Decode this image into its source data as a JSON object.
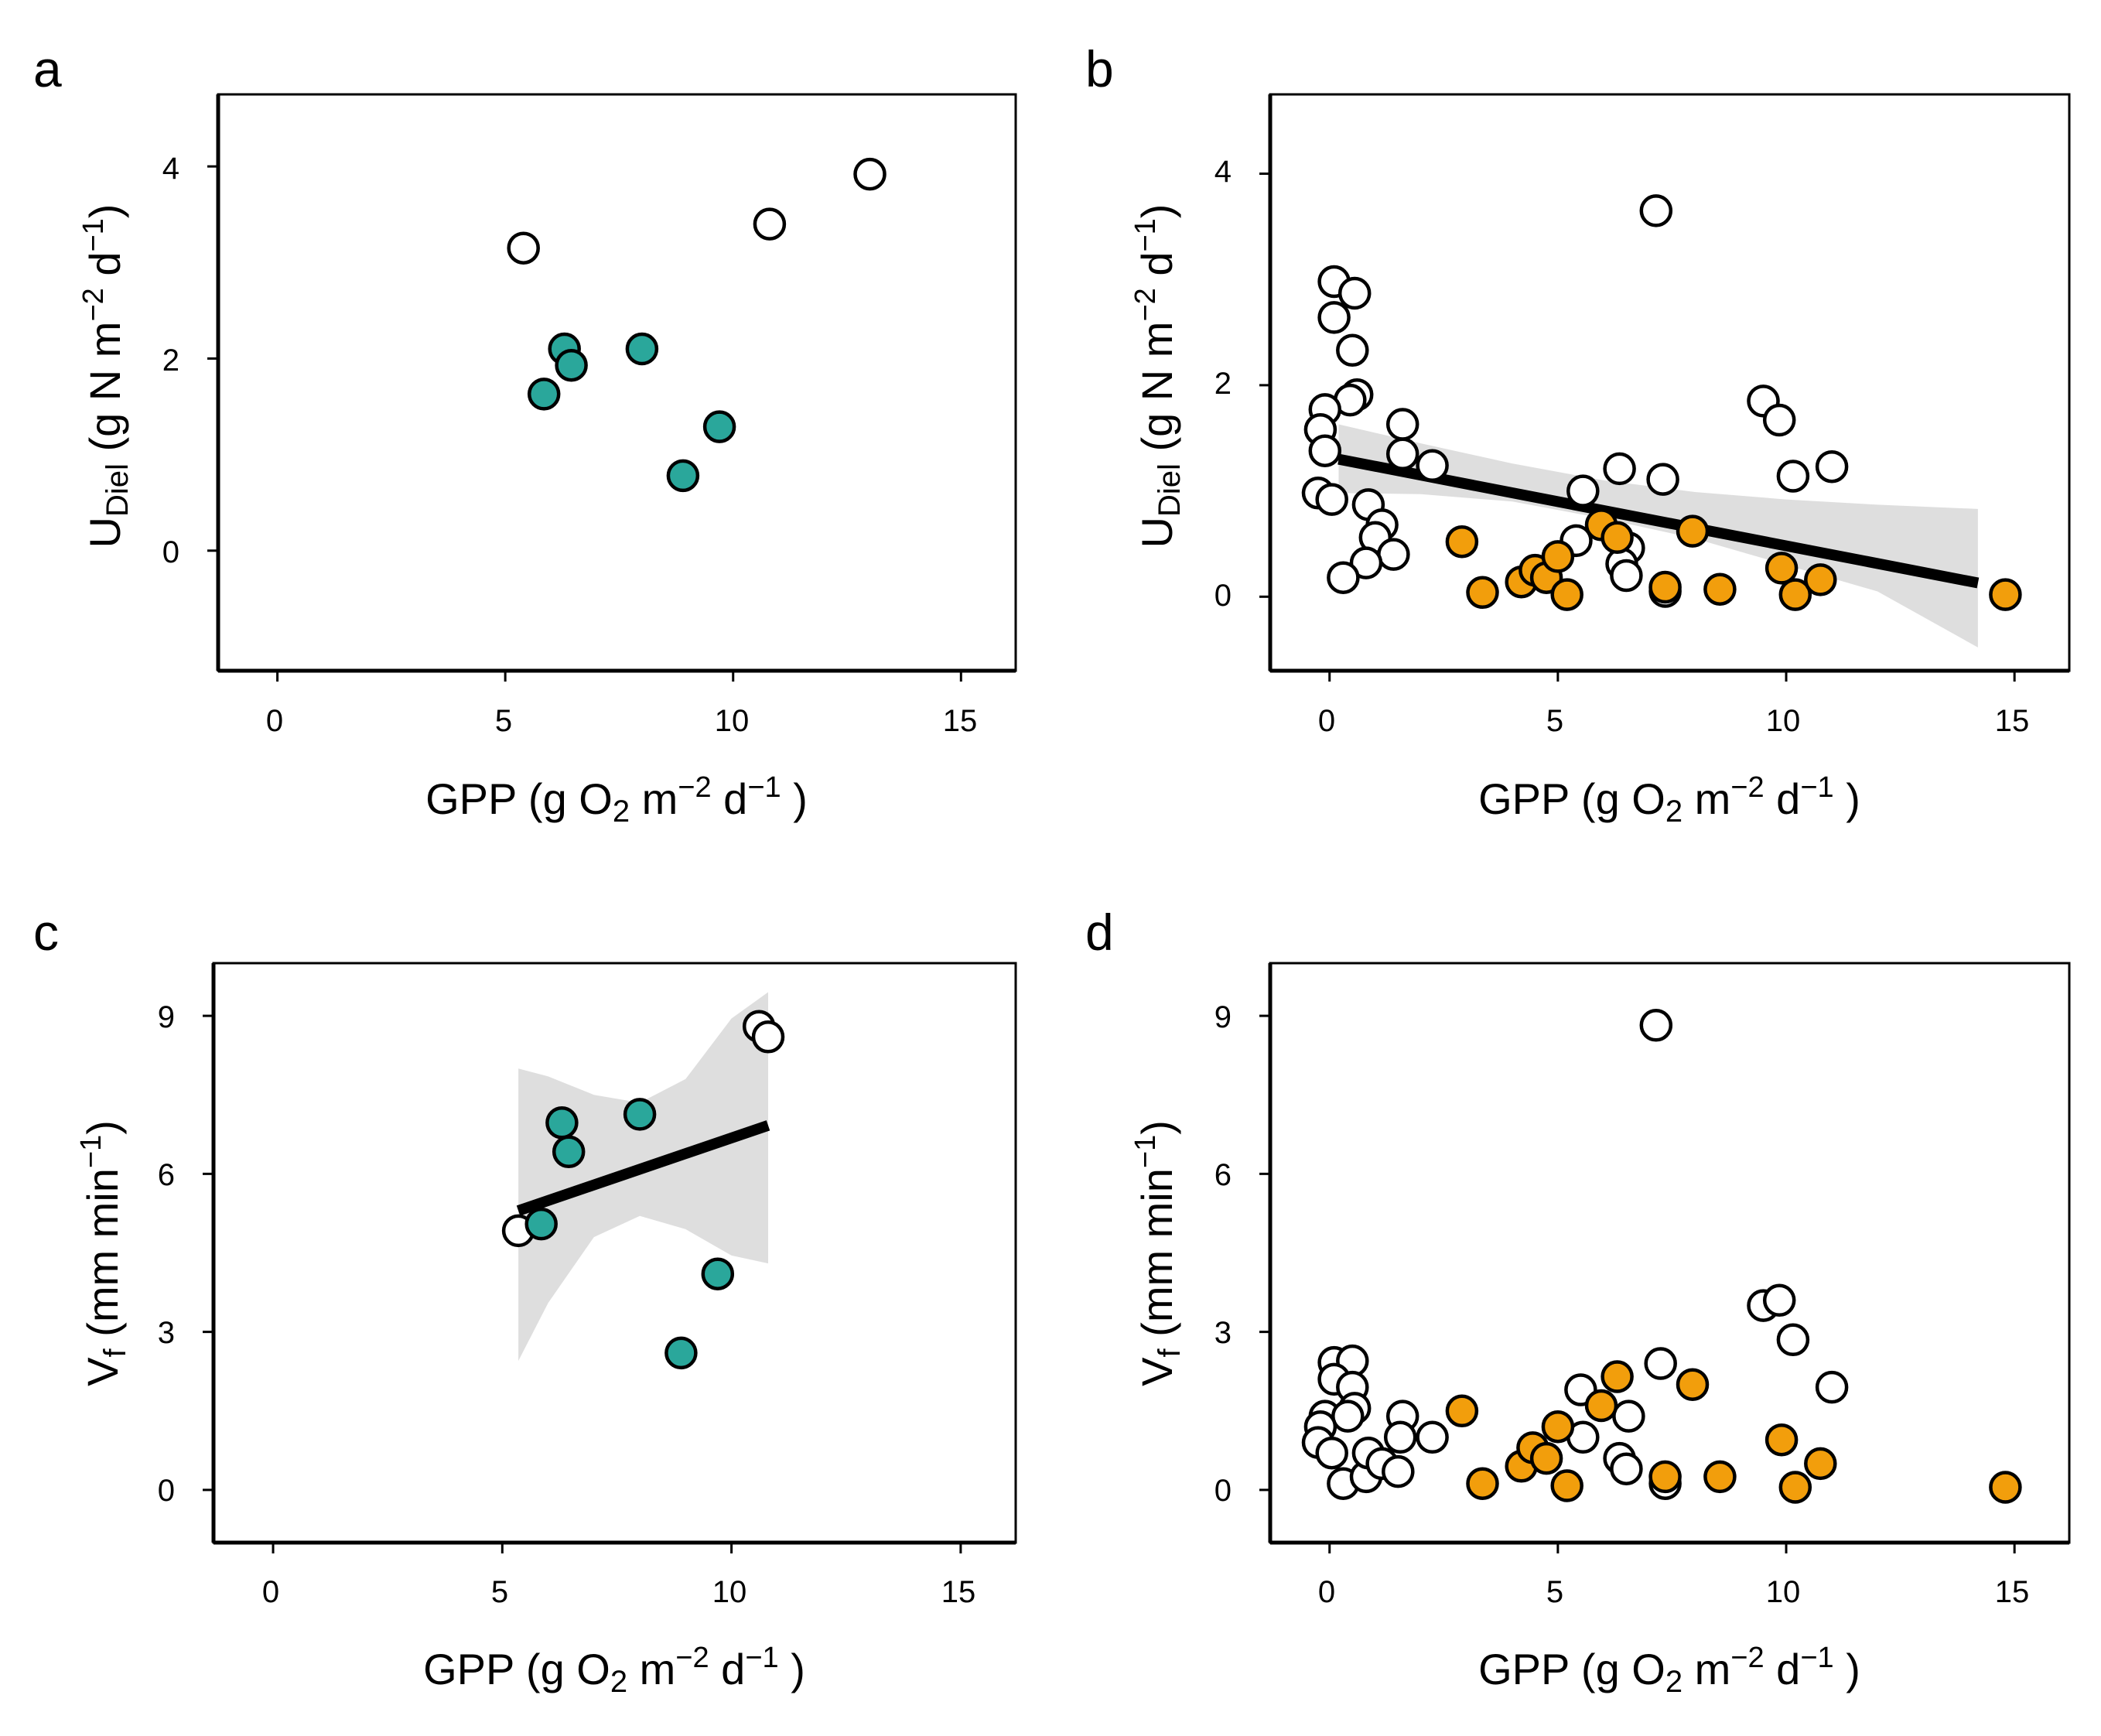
{
  "colors": {
    "teal": "#2aa79b",
    "orange": "#f29e0c",
    "white": "#ffffff",
    "band": "#dcdcdc"
  },
  "chart_data": [
    {
      "id": "a",
      "type": "scatter",
      "panel_label": "a",
      "xlabel": "GPP (g O2 m-2 d-1 )",
      "ylabel": "UDiel (g N m-2 d-1)",
      "xlim": [
        -1.3,
        16.2
      ],
      "ylim": [
        -1.25,
        4.75
      ],
      "xticks": [
        0,
        5,
        10,
        15
      ],
      "yticks": [
        0,
        2,
        4
      ],
      "series": [
        {
          "color": "white",
          "points": [
            [
              5.4,
              3.15
            ],
            [
              10.8,
              3.4
            ],
            [
              13.0,
              3.92
            ]
          ]
        },
        {
          "color": "teal",
          "points": [
            [
              6.3,
              2.1
            ],
            [
              6.45,
              1.93
            ],
            [
              5.85,
              1.63
            ],
            [
              8.0,
              2.1
            ],
            [
              9.7,
              1.29
            ],
            [
              8.9,
              0.78
            ]
          ]
        }
      ]
    },
    {
      "id": "b",
      "type": "scatter",
      "panel_label": "b",
      "xlabel": "GPP (g O2 m-2 d-1 )",
      "ylabel": "UDiel (g N m-2 d-1)",
      "xlim": [
        -1.3,
        16.2
      ],
      "ylim": [
        -0.7,
        4.75
      ],
      "xticks": [
        0,
        5,
        10,
        15
      ],
      "yticks": [
        0,
        2,
        4
      ],
      "series": [
        {
          "color": "white",
          "points": [
            [
              0.1,
              2.98
            ],
            [
              0.55,
              2.87
            ],
            [
              0.1,
              2.64
            ],
            [
              0.5,
              2.33
            ],
            [
              0.6,
              1.91
            ],
            [
              0.45,
              1.86
            ],
            [
              -0.1,
              1.77
            ],
            [
              -0.2,
              1.58
            ],
            [
              -0.1,
              1.38
            ],
            [
              -0.25,
              0.98
            ],
            [
              0.05,
              0.92
            ],
            [
              0.85,
              0.87
            ],
            [
              1.15,
              0.68
            ],
            [
              1.0,
              0.56
            ],
            [
              1.4,
              0.4
            ],
            [
              0.8,
              0.32
            ],
            [
              0.3,
              0.18
            ],
            [
              1.6,
              1.63
            ],
            [
              1.6,
              1.35
            ],
            [
              2.25,
              1.24
            ],
            [
              7.15,
              3.65
            ],
            [
              9.5,
              1.85
            ],
            [
              9.85,
              1.67
            ],
            [
              6.35,
              1.21
            ],
            [
              5.55,
              1.0
            ],
            [
              7.3,
              1.11
            ],
            [
              10.15,
              1.14
            ],
            [
              11.0,
              1.23
            ],
            [
              5.4,
              0.53
            ],
            [
              6.55,
              0.46
            ],
            [
              6.4,
              0.31
            ],
            [
              6.5,
              0.2
            ],
            [
              7.35,
              0.05
            ]
          ]
        },
        {
          "color": "orange",
          "points": [
            [
              2.9,
              0.52
            ],
            [
              3.35,
              0.04
            ],
            [
              4.2,
              0.14
            ],
            [
              4.5,
              0.25
            ],
            [
              4.75,
              0.18
            ],
            [
              5.0,
              0.38
            ],
            [
              5.2,
              0.02
            ],
            [
              5.95,
              0.68
            ],
            [
              6.3,
              0.56
            ],
            [
              7.35,
              0.09
            ],
            [
              7.95,
              0.62
            ],
            [
              8.55,
              0.07
            ],
            [
              9.9,
              0.27
            ],
            [
              10.2,
              0.02
            ],
            [
              10.75,
              0.16
            ],
            [
              14.8,
              0.02
            ]
          ]
        }
      ],
      "fit": {
        "x": [
          0.2,
          14.2
        ],
        "y": [
          1.3,
          0.13
        ]
      },
      "ci": {
        "x": [
          0.2,
          2.0,
          4.0,
          6.0,
          8.0,
          10.0,
          12.0,
          14.2
        ],
        "upper": [
          1.63,
          1.45,
          1.26,
          1.1,
          0.99,
          0.92,
          0.87,
          0.83
        ],
        "lower": [
          0.98,
          0.97,
          0.9,
          0.74,
          0.55,
          0.3,
          0.05,
          -0.48
        ]
      }
    },
    {
      "id": "c",
      "type": "scatter",
      "panel_label": "c",
      "xlabel": "GPP (g O2 m-2 d-1 )",
      "ylabel": "Vf (mm min-1)",
      "xlim": [
        -1.3,
        16.2
      ],
      "ylim": [
        -1.0,
        10.0
      ],
      "xticks": [
        0,
        5,
        10,
        15
      ],
      "yticks": [
        0,
        3,
        6,
        9
      ],
      "series": [
        {
          "color": "white",
          "points": [
            [
              5.35,
              4.92
            ],
            [
              10.6,
              8.8
            ],
            [
              10.8,
              8.6
            ]
          ]
        },
        {
          "color": "teal",
          "points": [
            [
              6.3,
              6.97
            ],
            [
              6.45,
              6.42
            ],
            [
              8.0,
              7.13
            ],
            [
              5.85,
              5.05
            ],
            [
              9.7,
              4.1
            ],
            [
              8.9,
              2.6
            ]
          ]
        }
      ],
      "fit": {
        "x": [
          5.35,
          10.8
        ],
        "y": [
          5.3,
          6.92
        ]
      },
      "ci": {
        "x": [
          5.35,
          6.0,
          7.0,
          8.0,
          9.0,
          10.0,
          10.8
        ],
        "upper": [
          8.0,
          7.85,
          7.5,
          7.35,
          7.8,
          8.95,
          9.45
        ],
        "lower": [
          2.45,
          3.55,
          4.8,
          5.2,
          4.95,
          4.45,
          4.3
        ]
      }
    },
    {
      "id": "d",
      "type": "scatter",
      "panel_label": "d",
      "xlabel": "GPP (g O2 m-2 d-1 )",
      "ylabel": "Vf (mm min-1)",
      "xlim": [
        -1.3,
        16.2
      ],
      "ylim": [
        -1.0,
        10.0
      ],
      "xticks": [
        0,
        5,
        10,
        15
      ],
      "yticks": [
        0,
        3,
        6,
        9
      ],
      "series": [
        {
          "color": "white",
          "points": [
            [
              7.15,
              8.82
            ],
            [
              0.1,
              2.42
            ],
            [
              0.5,
              2.45
            ],
            [
              0.1,
              2.1
            ],
            [
              0.5,
              1.95
            ],
            [
              0.55,
              1.55
            ],
            [
              -0.1,
              1.4
            ],
            [
              0.4,
              1.4
            ],
            [
              -0.2,
              1.2
            ],
            [
              -0.25,
              0.9
            ],
            [
              0.05,
              0.7
            ],
            [
              0.3,
              0.12
            ],
            [
              0.8,
              0.25
            ],
            [
              0.85,
              0.7
            ],
            [
              1.15,
              0.5
            ],
            [
              1.5,
              0.35
            ],
            [
              1.6,
              1.4
            ],
            [
              1.55,
              1.0
            ],
            [
              2.25,
              1.0
            ],
            [
              9.5,
              3.5
            ],
            [
              9.85,
              3.6
            ],
            [
              10.15,
              2.85
            ],
            [
              11.0,
              1.95
            ],
            [
              7.25,
              2.4
            ],
            [
              5.5,
              1.9
            ],
            [
              5.55,
              1.0
            ],
            [
              6.55,
              1.4
            ],
            [
              6.35,
              0.6
            ],
            [
              6.5,
              0.4
            ],
            [
              7.35,
              0.12
            ]
          ]
        },
        {
          "color": "orange",
          "points": [
            [
              2.9,
              1.5
            ],
            [
              3.35,
              0.12
            ],
            [
              4.2,
              0.45
            ],
            [
              4.45,
              0.8
            ],
            [
              4.75,
              0.6
            ],
            [
              5.0,
              1.2
            ],
            [
              5.2,
              0.08
            ],
            [
              5.95,
              1.6
            ],
            [
              6.3,
              2.15
            ],
            [
              7.35,
              0.25
            ],
            [
              7.95,
              2.0
            ],
            [
              8.55,
              0.25
            ],
            [
              9.9,
              0.95
            ],
            [
              10.2,
              0.05
            ],
            [
              10.75,
              0.5
            ],
            [
              14.8,
              0.05
            ]
          ]
        }
      ]
    }
  ],
  "panels": {
    "a": {
      "letter": "a",
      "yticks": [
        "0",
        "2",
        "4"
      ],
      "xticks": [
        "0",
        "5",
        "10",
        "15"
      ],
      "xtitle": {
        "pre": "GPP (g O",
        "sub": "2",
        "mid": " m",
        "sup1": "−2",
        "mid2": " d",
        "sup2": "−1",
        "post": " )"
      },
      "ytitle": {
        "pre": "U",
        "sub": "Diel",
        "mid": " (g N  m",
        "sup1": "−2",
        "mid2": " d",
        "sup2": "−1",
        "post": ")"
      }
    },
    "b": {
      "letter": "b",
      "yticks": [
        "0",
        "2",
        "4"
      ],
      "xticks": [
        "0",
        "5",
        "10",
        "15"
      ],
      "xtitle": {
        "pre": "GPP (g O",
        "sub": "2",
        "mid": " m",
        "sup1": "−2",
        "mid2": " d",
        "sup2": "−1",
        "post": " )"
      },
      "ytitle": {
        "pre": "U",
        "sub": "Diel",
        "mid": " (g N  m",
        "sup1": "−2",
        "mid2": " d",
        "sup2": "−1",
        "post": ")"
      }
    },
    "c": {
      "letter": "c",
      "yticks": [
        "0",
        "3",
        "6",
        "9"
      ],
      "xticks": [
        "0",
        "5",
        "10",
        "15"
      ],
      "xtitle": {
        "pre": "GPP (g O",
        "sub": "2",
        "mid": " m",
        "sup1": "−2",
        "mid2": " d",
        "sup2": "−1",
        "post": " )"
      },
      "ytitle": {
        "pre": "V",
        "sub": "f",
        "mid": " (mm  min",
        "sup1": "−1",
        "post": ")"
      }
    },
    "d": {
      "letter": "d",
      "yticks": [
        "0",
        "3",
        "6",
        "9"
      ],
      "xticks": [
        "0",
        "5",
        "10",
        "15"
      ],
      "xtitle": {
        "pre": "GPP (g  O",
        "sub": "2",
        "mid": " m",
        "sup1": "−2",
        "mid2": " d",
        "sup2": "−1",
        "post": " )"
      },
      "ytitle": {
        "pre": "V",
        "sub": "f",
        "mid": " (mm  min",
        "sup1": "−1",
        "post": ")"
      }
    }
  }
}
